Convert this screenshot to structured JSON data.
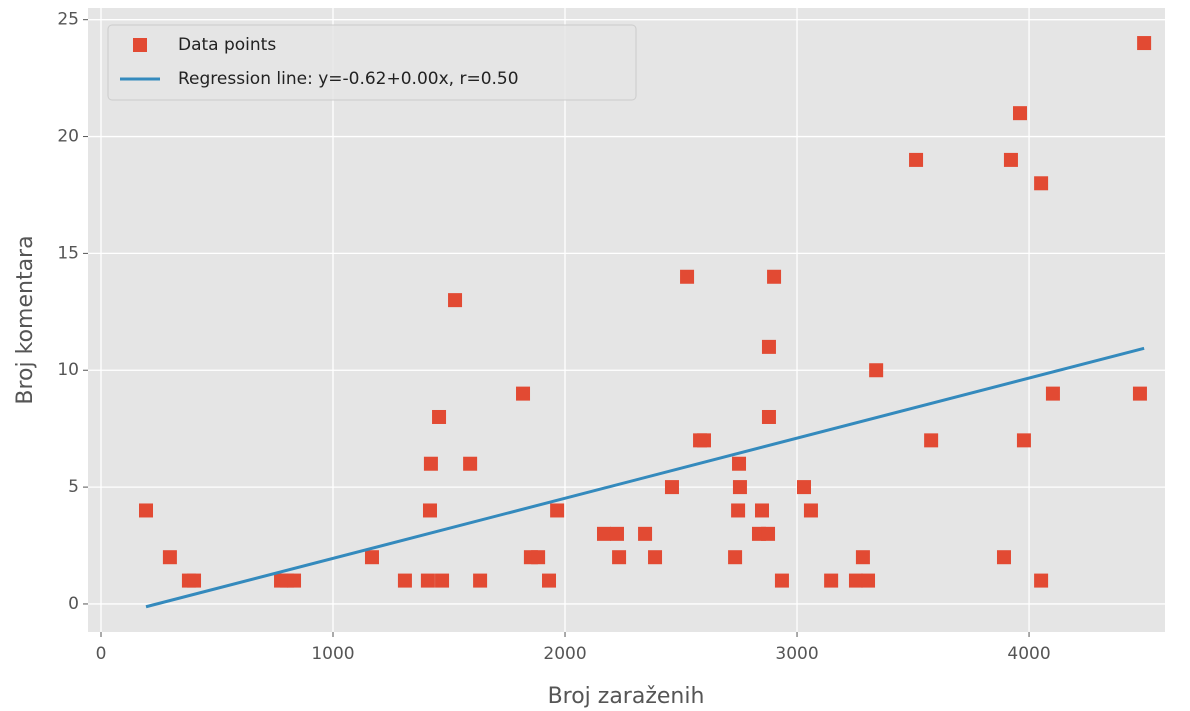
{
  "chart_data": {
    "type": "scatter",
    "xlabel": "Broj zaraženih",
    "ylabel": "Broj komentara",
    "xlim": [
      -56,
      4586
    ],
    "ylim": [
      -1.2,
      25.5
    ],
    "xticks": [
      0,
      1000,
      2000,
      3000,
      4000
    ],
    "yticks": [
      0,
      5,
      10,
      15,
      20,
      25
    ],
    "grid": true,
    "legend": "upper left",
    "series": [
      {
        "name": "Data points",
        "type": "scatter",
        "color": "#E24A33",
        "x": [
          194,
          297,
          379,
          401,
          776,
          802,
          832,
          1168,
          1310,
          1418,
          1422,
          1409,
          1457,
          1470,
          1526,
          1591,
          1634,
          1819,
          1853,
          1884,
          1931,
          1966,
          2168,
          2224,
          2233,
          2345,
          2388,
          2461,
          2526,
          2582,
          2599,
          2733,
          2746,
          2750,
          2754,
          2849,
          2836,
          2875,
          2879,
          2879,
          2901,
          2935,
          3030,
          3060,
          3147,
          3254,
          3284,
          3306,
          3341,
          3513,
          3578,
          3892,
          3922,
          3961,
          3978,
          4052,
          4052,
          4103,
          4478,
          4496
        ],
        "values": [
          4,
          2,
          1,
          1,
          1,
          1,
          1,
          2,
          1,
          4,
          6,
          1,
          8,
          1,
          13,
          6,
          1,
          9,
          2,
          2,
          1,
          4,
          3,
          3,
          2,
          3,
          2,
          5,
          14,
          7,
          7,
          2,
          4,
          6,
          5,
          4,
          3,
          3,
          11,
          8,
          14,
          1,
          5,
          4,
          1,
          1,
          2,
          1,
          10,
          19,
          7,
          2,
          19,
          21,
          7,
          18,
          1,
          9,
          9,
          24
        ]
      },
      {
        "name": "Regression line: y=-0.62+0.00x, r=0.50",
        "type": "line",
        "color": "#348ABD",
        "x": [
          194,
          4496
        ],
        "values": [
          -0.12,
          10.94
        ]
      }
    ]
  }
}
